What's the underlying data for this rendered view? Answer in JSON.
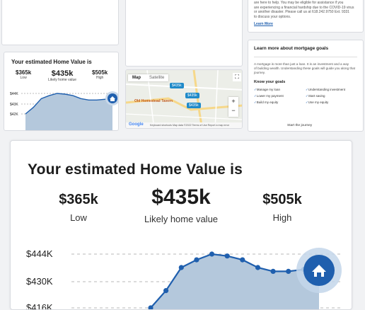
{
  "help_card": {
    "text_lines": [
      "are here to help. You may be eligible for assistance if you",
      "are experiencing a financial hardship due to the COVID-19 virus",
      "or another disaster. Please call us at 618.242.9750 Ext. 9331",
      "to discuss your options."
    ],
    "link": "Learn More"
  },
  "home_value": {
    "title": "Your estimated Home Value is",
    "low_value": "$365k",
    "low_label": "Low",
    "likely_value": "$435k",
    "likely_label": "Likely home value",
    "high_value": "$505k",
    "high_label": "High",
    "small_y_ticks": [
      "$44K",
      "$43K",
      "$42K"
    ],
    "big_y_ticks": [
      "$444K",
      "$430K",
      "$416K"
    ],
    "accent_color": "#1f5fae",
    "area_color": "#b4c8dc"
  },
  "chart_data": {
    "type": "area",
    "title": "Your estimated Home Value is",
    "ylabel": "",
    "y_ticks": [
      "$444K",
      "$430K",
      "$416K"
    ],
    "series": [
      {
        "values": [
          416,
          425,
          437,
          441,
          444,
          443,
          441,
          437,
          435,
          435,
          436,
          437
        ]
      }
    ],
    "ylim": [
      412,
      448
    ],
    "grid": true
  },
  "map": {
    "tab_map": "Map",
    "tab_satellite": "Satellite",
    "place_label": "Old Homestead Tavern",
    "price_pins": [
      "$435k",
      "$435k",
      "$435k"
    ],
    "zoom_in": "+",
    "zoom_out": "−",
    "footer": "Keyboard shortcuts  Map data ©2022  Terms of Use  Report a map error",
    "brand": "Google"
  },
  "goals_card": {
    "title": "Learn more about mortgage goals",
    "intro_lines": [
      "A mortgage is more than just a loan. It is an investment and a way",
      "of building wealth. Understanding these goals will guide you along that",
      "journey."
    ],
    "know_goals": "Know your goals",
    "goals": [
      "Manage my loan",
      "Understanding investment",
      "Lower my payment",
      "Start saving",
      "Build my equity",
      "Use my equity"
    ],
    "start_journey": "Start the journey"
  }
}
